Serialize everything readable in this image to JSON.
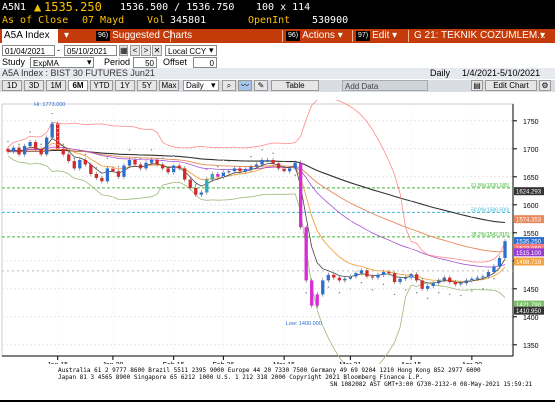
{
  "quote": {
    "ticker": "A5N1",
    "last": "1535.250",
    "bid_ask": "1536.500 / 1536.750",
    "size": "100 x 114",
    "close_label": "As of Close",
    "close_date": "07 Mayd",
    "vol_label": "Vol",
    "vol": "345801",
    "oi_label": "OpenInt",
    "oi": "530900"
  },
  "toolbar": {
    "ticker": "A5A Index",
    "suggested_num": "96)",
    "suggested": "Suggested Charts",
    "actions_num": "96)",
    "actions": "Actions",
    "edit_num": "97)",
    "edit": "Edit",
    "title": "G 21: TEKNIK COZUMLEM..."
  },
  "controls": {
    "date_from": "01/04/2021",
    "date_to": "05/10/2021",
    "currency": "Local CCY",
    "study_label": "Study",
    "study": "ExpMA",
    "period_label": "Period",
    "period": "50",
    "offset_label": "Offset",
    "offset": "0",
    "security": "A5A Index : BIST 30 FUTURES Jun21",
    "freq": "Daily",
    "range": "1/4/2021-5/10/2021",
    "ranges": [
      "1D",
      "3D",
      "1M",
      "6M",
      "YTD",
      "1Y",
      "5Y",
      "Max"
    ],
    "daily_sel": "Daily",
    "table": "Table",
    "add_data": "Add Data",
    "edit_chart": "Edit Chart"
  },
  "chart_data": {
    "type": "candlestick",
    "dates": [
      "Jan 4",
      "Jan 5",
      "Jan 6",
      "Jan 7",
      "Jan 8",
      "Jan 11",
      "Jan 12",
      "Jan 13",
      "Jan 14",
      "Jan 15",
      "Jan 18",
      "Jan 19",
      "Jan 20",
      "Jan 21",
      "Jan 22",
      "Jan 25",
      "Jan 26",
      "Jan 27",
      "Jan 28",
      "Jan 29",
      "Feb 1",
      "Feb 2",
      "Feb 3",
      "Feb 4",
      "Feb 5",
      "Feb 8",
      "Feb 9",
      "Feb 10",
      "Feb 11",
      "Feb 12",
      "Feb 15",
      "Feb 16",
      "Feb 17",
      "Feb 18",
      "Feb 19",
      "Feb 22",
      "Feb 23",
      "Feb 24",
      "Feb 25",
      "Feb 26",
      "Mar 1",
      "Mar 2",
      "Mar 3",
      "Mar 4",
      "Mar 5",
      "Mar 8",
      "Mar 9",
      "Mar 10",
      "Mar 11",
      "Mar 12",
      "Mar 15",
      "Mar 16",
      "Mar 17",
      "Mar 18",
      "Mar 19",
      "Mar 22",
      "Mar 23",
      "Mar 24",
      "Mar 25",
      "Mar 26",
      "Mar 29",
      "Mar 30",
      "Mar 31",
      "Apr 1",
      "Apr 2",
      "Apr 5",
      "Apr 6",
      "Apr 7",
      "Apr 8",
      "Apr 9",
      "Apr 12",
      "Apr 13",
      "Apr 14",
      "Apr 15",
      "Apr 16",
      "Apr 19",
      "Apr 20",
      "Apr 21",
      "Apr 22",
      "Apr 23",
      "Apr 26",
      "Apr 27",
      "Apr 28",
      "Apr 29",
      "Apr 30",
      "May 3",
      "May 4",
      "May 5",
      "May 6",
      "May 7",
      "May 10"
    ],
    "close": [
      1695,
      1702,
      1690,
      1705,
      1712,
      1700,
      1690,
      1720,
      1745,
      1700,
      1690,
      1678,
      1665,
      1680,
      1672,
      1655,
      1648,
      1642,
      1665,
      1660,
      1650,
      1670,
      1680,
      1672,
      1665,
      1675,
      1680,
      1672,
      1665,
      1658,
      1670,
      1665,
      1645,
      1630,
      1618,
      1622,
      1645,
      1655,
      1650,
      1658,
      1660,
      1665,
      1660,
      1663,
      1668,
      1672,
      1680,
      1680,
      1674,
      1665,
      1660,
      1665,
      1675,
      1560,
      1465,
      1420,
      1440,
      1465,
      1475,
      1470,
      1465,
      1468,
      1472,
      1478,
      1483,
      1472,
      1470,
      1475,
      1480,
      1478,
      1462,
      1468,
      1470,
      1476,
      1465,
      1450,
      1455,
      1460,
      1465,
      1470,
      1462,
      1458,
      1460,
      1465,
      1468,
      1470,
      1472,
      1480,
      1490,
      1505,
      1535
    ],
    "x_ticks": [
      "Jan 15",
      "Jan 29",
      "Feb 15",
      "Feb 26",
      "Mar 15",
      "Mar 31",
      "Apr 15",
      "Apr 30"
    ],
    "year": "2021",
    "y_ticks": [
      1350,
      1400,
      1450,
      1500,
      1550,
      1600,
      1650,
      1700,
      1750
    ],
    "ylim": [
      1330,
      1780
    ],
    "hi_label": "Hi: 1773.000",
    "lo_label": "Low: 1400.000",
    "fib_levels": [
      {
        "label": "61.8%(1630.185)",
        "value": 1630.185
      },
      {
        "label": "50.0%(1586.500)",
        "value": 1586.5
      },
      {
        "label": "38.2%(1542.815)",
        "value": 1542.815
      }
    ],
    "price_labels": [
      {
        "value": 1624.293,
        "text": "1624.293",
        "color": "#333333"
      },
      {
        "value": 1574.353,
        "text": "1574.353",
        "color": "#e8885a"
      },
      {
        "value": 1535.25,
        "text": "1535.250",
        "color": "#2d6fcf"
      },
      {
        "value": 1523.06,
        "text": "1523.060",
        "color": "#ff7878"
      },
      {
        "value": 1515.1,
        "text": "1515.100",
        "color": "#9a3bd3"
      },
      {
        "value": 1498.719,
        "text": "1498.719",
        "color": "#f3a23c"
      },
      {
        "value": 1421.79,
        "text": "1421.790",
        "color": "#7cc06b"
      },
      {
        "value": 1410.95,
        "text": "1410.950",
        "color": "#333333"
      }
    ]
  },
  "footer": {
    "line1": "Australia 61 2 9777 8600 Brazil 5511 2395 9000 Europe 44 20 7330 7500 Germany 49 69 9204 1210 Hong Kong 852 2977 6000",
    "line2": "Japan 81 3 4565 8900        Singapore 65 6212 1000        U.S. 1 212 318 2000         Copyright 2021 Bloomberg Finance L.P.",
    "line3": "SN 1082082 AST  GMT+3:00 G730-2132-0 08-May-2021 15:59:21"
  }
}
